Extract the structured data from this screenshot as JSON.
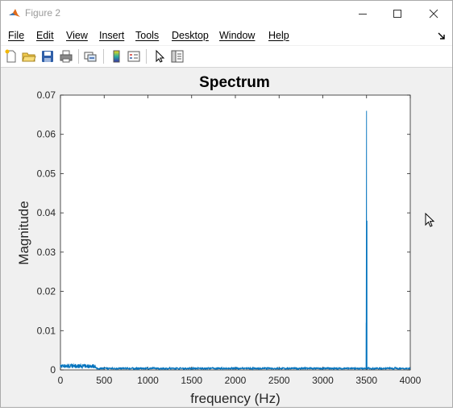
{
  "window": {
    "title": "Figure 2",
    "controls": {
      "minimize": "minimize",
      "maximize": "maximize",
      "close": "close"
    }
  },
  "menu": {
    "items": [
      {
        "label": "File"
      },
      {
        "label": "Edit"
      },
      {
        "label": "View"
      },
      {
        "label": "Insert"
      },
      {
        "label": "Tools"
      },
      {
        "label": "Desktop"
      },
      {
        "label": "Window"
      },
      {
        "label": "Help"
      }
    ]
  },
  "toolbar": {
    "buttons": [
      {
        "icon": "new-figure-icon"
      },
      {
        "icon": "open-file-icon"
      },
      {
        "icon": "save-icon"
      },
      {
        "icon": "print-icon"
      },
      {
        "icon": "link-plot-icon"
      },
      {
        "icon": "colorbar-icon"
      },
      {
        "icon": "legend-icon"
      },
      {
        "icon": "edit-plot-icon"
      },
      {
        "icon": "property-inspector-icon"
      }
    ]
  },
  "colors": {
    "line": "#0072bd",
    "axes_bg": "#ffffff",
    "figure_bg": "#f0f0f0"
  },
  "chart_data": {
    "type": "line",
    "title": "Spectrum",
    "xlabel": "frequency (Hz)",
    "ylabel": "Magnitude",
    "xlim": [
      0,
      4000
    ],
    "ylim": [
      0,
      0.07
    ],
    "xticks": [
      0,
      500,
      1000,
      1500,
      2000,
      2500,
      3000,
      3500,
      4000
    ],
    "yticks": [
      0,
      0.01,
      0.02,
      0.03,
      0.04,
      0.05,
      0.06,
      0.07
    ],
    "xtick_labels": [
      "0",
      "500",
      "1000",
      "1500",
      "2000",
      "2500",
      "3000",
      "3500",
      "4000"
    ],
    "ytick_labels": [
      "0",
      "0.01",
      "0.02",
      "0.03",
      "0.04",
      "0.05",
      "0.06",
      "0.07"
    ],
    "grid": false,
    "series": [
      {
        "noise_floor": 0.0005,
        "peaks": [
          {
            "x": 3500,
            "y": 0.066
          },
          {
            "x": 3505,
            "y": 0.038
          },
          {
            "x": 3495,
            "y": 0.012
          }
        ],
        "low_freq_bump": {
          "x_range": [
            0,
            400
          ],
          "y_max": 0.0015
        }
      }
    ]
  }
}
